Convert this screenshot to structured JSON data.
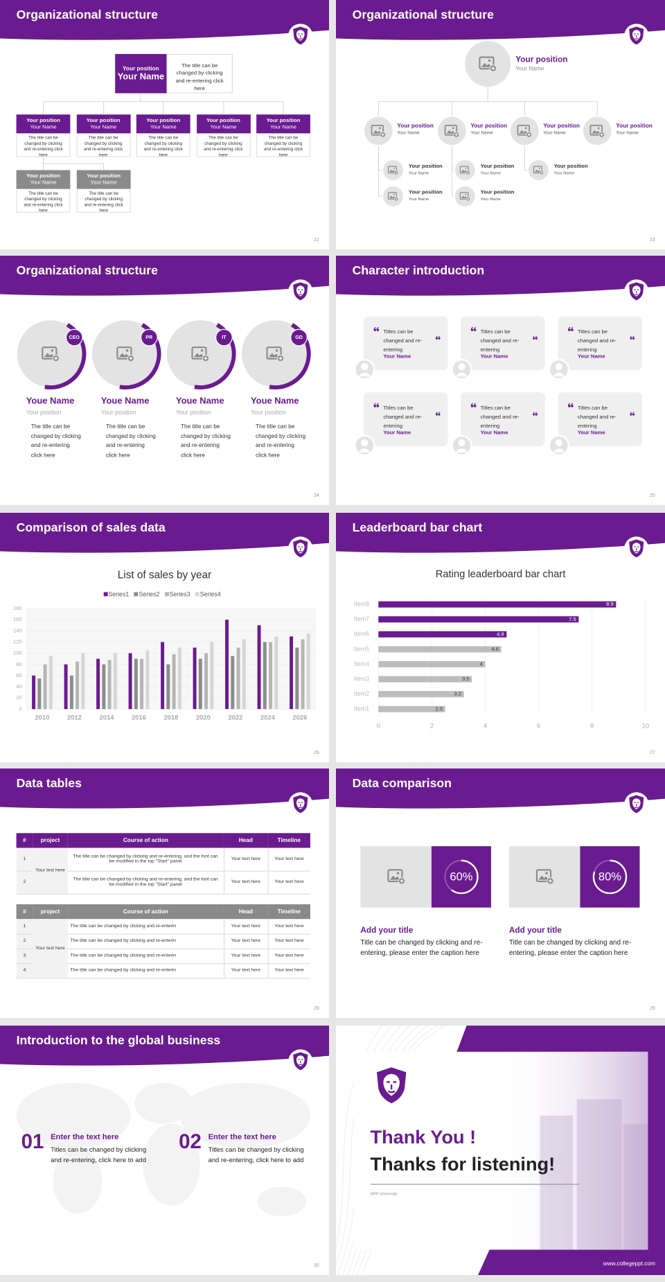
{
  "slides": [
    {
      "title": "Organizational structure",
      "page": "22",
      "top": {
        "position": "Your position",
        "name": "Your Name",
        "text": "The title can be changed by clicking and re-entering click here"
      },
      "members": [
        {
          "position": "Your position",
          "name": "Your Name",
          "text": "The title can be changed by clicking and re-entering click here"
        },
        {
          "position": "Your position",
          "name": "Your Name",
          "text": "The title can be changed by clicking and re-entering click here"
        },
        {
          "position": "Your position",
          "name": "Your Name",
          "text": "The title can be changed by clicking and re-entering click here"
        },
        {
          "position": "Your position",
          "name": "Your Name",
          "text": "The title can be changed by clicking and re-entering click here"
        },
        {
          "position": "Your position",
          "name": "Your Name",
          "text": "The title can be changed by clicking and re-entering click here"
        },
        {
          "position": "Your position",
          "name": "Your Name",
          "text": "The title can be changed by clicking and re-entering click here"
        },
        {
          "position": "Your position",
          "name": "Your Name",
          "text": "The title can be changed by clicking and re-entering click here"
        }
      ]
    },
    {
      "title": "Organizational structure",
      "page": "23",
      "top": {
        "position": "Your position",
        "name": "Your Name"
      },
      "managers": [
        {
          "position": "Your position",
          "name": "Your Name"
        },
        {
          "position": "Your position",
          "name": "Your Name"
        },
        {
          "position": "Your position",
          "name": "Your Name"
        },
        {
          "position": "Your position",
          "name": "Your Name"
        }
      ],
      "staff": [
        {
          "position": "Your position",
          "name": "Your Name"
        },
        {
          "position": "Your position",
          "name": "Your Name"
        },
        {
          "position": "Your position",
          "name": "Your Name"
        },
        {
          "position": "Your position",
          "name": "Your Name"
        },
        {
          "position": "Your position",
          "name": "Your Name"
        }
      ]
    },
    {
      "title": "Organizational structure",
      "page": "24",
      "people": [
        {
          "badge": "CEO",
          "name": "Youe Name",
          "position": "Your position",
          "text": "The title can be changed by clicking and re-entering click here"
        },
        {
          "badge": "PR",
          "name": "Youe Name",
          "position": "Your position",
          "text": "The title can be changed by clicking and re-entering click here"
        },
        {
          "badge": "IT",
          "name": "Youe Name",
          "position": "Your position",
          "text": "The title can be changed by clicking and re-entering click here"
        },
        {
          "badge": "GD",
          "name": "Youe Name",
          "position": "Your position",
          "text": "The title can be changed by clicking and re-entering click here"
        }
      ]
    },
    {
      "title": "Character introduction",
      "page": "25",
      "cards": [
        {
          "text": "Titles can be changed and re-entering",
          "name": "Your Name"
        },
        {
          "text": "Titles can be changed and re-entering",
          "name": "Your Name"
        },
        {
          "text": "Titles can be changed and re-entering",
          "name": "Your Name"
        },
        {
          "text": "Titles can be changed and re-entering",
          "name": "Your Name"
        },
        {
          "text": "Titles can be changed and re-entering",
          "name": "Your Name"
        },
        {
          "text": "Titles can be changed and re-entering",
          "name": "Your Name"
        }
      ]
    },
    {
      "title": "Comparison of sales data",
      "page": "26",
      "chart": {
        "type": "bar",
        "title": "List of sales by year",
        "categories": [
          "2010",
          "2012",
          "2014",
          "2016",
          "2018",
          "2020",
          "2022",
          "2024",
          "2026"
        ],
        "series": [
          {
            "name": "Series1",
            "color": "#6a1b8f",
            "values": [
              60,
              80,
              90,
              100,
              120,
              110,
              160,
              150,
              130
            ]
          },
          {
            "name": "Series2",
            "color": "#8c8c8c",
            "values": [
              55,
              60,
              80,
              90,
              80,
              90,
              95,
              120,
              110
            ]
          },
          {
            "name": "Series3",
            "color": "#b5b5b5",
            "values": [
              80,
              85,
              88,
              90,
              98,
              100,
              110,
              120,
              125
            ]
          },
          {
            "name": "Series4",
            "color": "#d6d6d6",
            "values": [
              95,
              100,
              100,
              105,
              110,
              120,
              125,
              130,
              135
            ]
          }
        ],
        "ylim": [
          0,
          180
        ],
        "yticks": [
          0,
          20,
          40,
          60,
          80,
          100,
          120,
          140,
          160,
          180
        ],
        "grid": true,
        "legend": "top"
      }
    },
    {
      "title": "Leaderboard bar chart",
      "page": "27",
      "chart": {
        "type": "barh",
        "title": "Rating leaderboard bar chart",
        "categories": [
          "Item1",
          "Item2",
          "Item3",
          "Item4",
          "Item5",
          "Item6",
          "Item7",
          "Item8"
        ],
        "values": [
          2.5,
          3.2,
          3.5,
          4,
          4.6,
          4.8,
          7.5,
          8.9
        ],
        "colors": [
          "#bdbdbd",
          "#bdbdbd",
          "#bdbdbd",
          "#bdbdbd",
          "#bdbdbd",
          "#6a1b8f",
          "#6a1b8f",
          "#6a1b8f"
        ],
        "xlim": [
          0,
          10
        ],
        "xticks": [
          0,
          2,
          4,
          6,
          8,
          10
        ],
        "grid": true
      }
    },
    {
      "title": "Data tables",
      "page": "28",
      "tables": [
        {
          "header": [
            "#",
            "project",
            "Course of action",
            "Head",
            "Timeline"
          ],
          "project": "Your text here",
          "rows": [
            [
              "1",
              "The title can be changed by clicking and re-entering, and the font can be modified in the top \"Start\" panel",
              "Your text here",
              "Your text here"
            ],
            [
              "2",
              "The title can be changed by clicking and re-entering, and the font can be modified in the top \"Start\" panel",
              "Your text here",
              "Your text here"
            ]
          ]
        },
        {
          "header": [
            "#",
            "project",
            "Course of action",
            "Head",
            "Timeline"
          ],
          "project": "Your text here",
          "rows": [
            [
              "1",
              "The title can be changed by clicking and re-enterin",
              "Your text here",
              "Your text here"
            ],
            [
              "2",
              "The title can be changed by clicking and re-enterin",
              "Your text here",
              "Your text here"
            ],
            [
              "3",
              "The title can be changed by clicking and re-enterin",
              "Your text here",
              "Your text here"
            ],
            [
              "4",
              "The title can be changed by clicking and re-enterin",
              "Your text here",
              "Your text here"
            ]
          ]
        }
      ]
    },
    {
      "title": "Data comparison",
      "page": "29",
      "items": [
        {
          "value": 60,
          "label": "60%",
          "title": "Add your title",
          "text": "Title can be changed by clicking and re-entering, please enter the caption here"
        },
        {
          "value": 80,
          "label": "80%",
          "title": "Add your title",
          "text": "Title can be changed by clicking and re-entering, please enter the caption here"
        }
      ]
    },
    {
      "title": "Introduction to the global business",
      "page": "30",
      "points": [
        {
          "number": "01",
          "heading": "Enter the text here",
          "text": "Titles can be changed by clicking and re-entering, click here to add"
        },
        {
          "number": "02",
          "heading": "Enter the text here",
          "text": "Titles can be changed by clicking and re-entering, click here to add"
        }
      ]
    },
    {
      "heading": "Thank You !",
      "subheading": "Thanks for listening!",
      "caption": "SPP University",
      "url": "www.collegeppt.com"
    }
  ]
}
